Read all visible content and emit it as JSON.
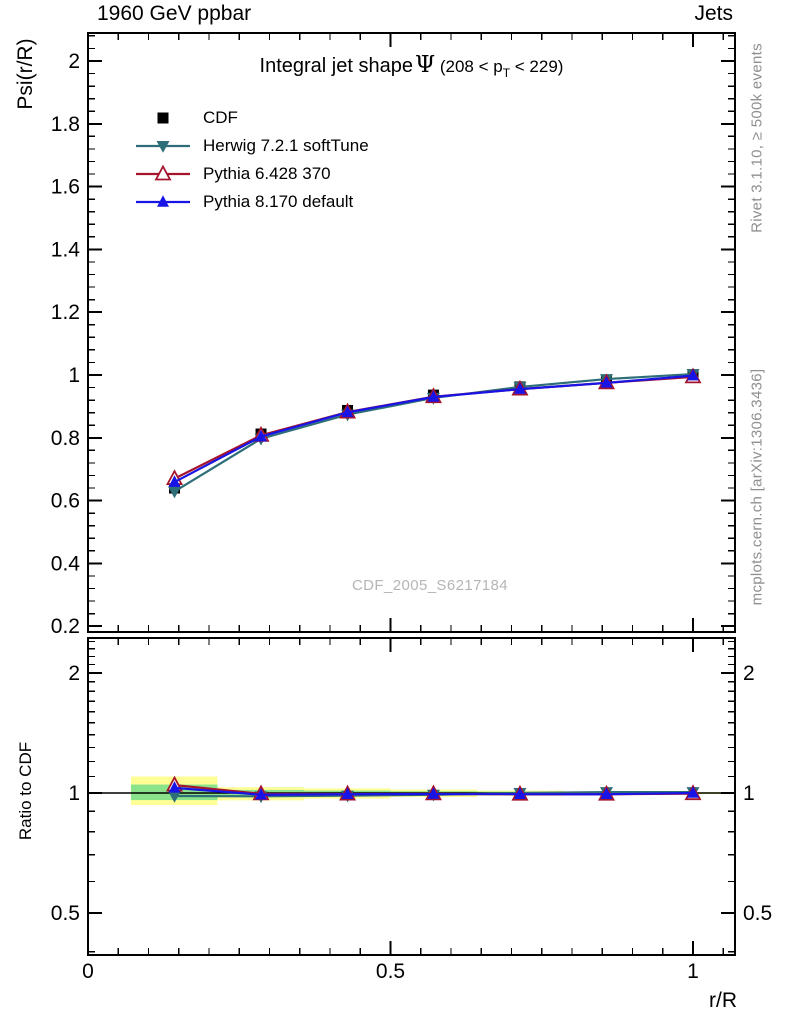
{
  "header": {
    "left": "1960 GeV ppbar",
    "right": "Jets"
  },
  "title": {
    "main": "Integral jet shape",
    "symbol": "Ψ",
    "cut_prefix": " (208 < p",
    "cut_sub": "T",
    "cut_suffix": " < 229)"
  },
  "axis_labels": {
    "y_main": "Psi(r/R)",
    "y_ratio": "Ratio to CDF",
    "x": "r/R"
  },
  "side_notes": {
    "top_right": "Rivet 3.1.10, ≥ 500k events",
    "bottom_right": "mcplots.cern.ch [arXiv:1306.3436]"
  },
  "watermark": "CDF_2005_S6217184",
  "colors": {
    "frame": "#000000",
    "cdf": "#000000",
    "herwig": "#2d6e78",
    "pythia6": "#a5142d",
    "pythia8": "#1914e6",
    "band_yellow": "#fdff96",
    "band_green": "#8ae28a",
    "gray_text": "#8f8f8f",
    "watermark_gray": "#b5b5b5"
  },
  "chart_data": {
    "type": "line",
    "title": "Integral jet shape Ψ (208 < p_T < 229)",
    "xlabel": "r/R",
    "ylabel": "Psi(r/R)",
    "ratio_ylabel": "Ratio to CDF",
    "x": [
      0.143,
      0.286,
      0.429,
      0.571,
      0.714,
      0.857,
      1.0
    ],
    "xlim": [
      0,
      1.069
    ],
    "ylim_main": [
      0.18,
      2.09
    ],
    "ylim_ratio": [
      0.39,
      2.45
    ],
    "ratio_log": true,
    "xticks": {
      "values": [
        0,
        0.5,
        1
      ],
      "labels": [
        "0",
        "0.5",
        "1"
      ]
    },
    "yticks_main": {
      "values": [
        0.2,
        0.4,
        0.6,
        0.8,
        1,
        1.2,
        1.4,
        1.6,
        1.8,
        2
      ],
      "labels": [
        "0.2",
        "0.4",
        "0.6",
        "0.8",
        "1",
        "1.2",
        "1.4",
        "1.6",
        "1.8",
        "2"
      ]
    },
    "yticks_ratio": {
      "values": [
        0.5,
        1,
        2
      ],
      "labels": [
        "0.5",
        "1",
        "2"
      ]
    },
    "series": [
      {
        "name": "CDF",
        "kind": "data",
        "marker": "square",
        "color": "#000000",
        "values": [
          0.64,
          0.812,
          0.887,
          0.936,
          0.962,
          0.982,
          0.998
        ],
        "errors": [
          0.012,
          0.008,
          0.006,
          0.005,
          0.004,
          0.004,
          0.004
        ]
      },
      {
        "name": "Herwig 7.2.1 softTune",
        "kind": "mc",
        "marker": "triangle-down",
        "color": "#2d6e78",
        "values": [
          0.629,
          0.797,
          0.874,
          0.927,
          0.962,
          0.987,
          1.003
        ],
        "ratio": [
          0.983,
          0.981,
          0.985,
          0.99,
          1.0,
          1.005,
          1.005
        ]
      },
      {
        "name": "Pythia 6.428 370",
        "kind": "mc",
        "marker": "triangle-open",
        "color": "#a5142d",
        "values": [
          0.67,
          0.808,
          0.882,
          0.931,
          0.955,
          0.975,
          0.994
        ],
        "ratio": [
          1.047,
          0.995,
          0.994,
          0.995,
          0.993,
          0.993,
          0.996
        ]
      },
      {
        "name": "Pythia 8.170 default",
        "kind": "mc",
        "marker": "triangle-up",
        "color": "#1914e6",
        "values": [
          0.659,
          0.804,
          0.881,
          0.93,
          0.955,
          0.975,
          0.998
        ],
        "ratio": [
          1.03,
          0.99,
          0.993,
          0.994,
          0.993,
          0.993,
          1.0
        ]
      }
    ],
    "ratio_reference": 1.0,
    "ratio_bands": [
      {
        "x0": 0.071,
        "x1": 0.214,
        "yellow": [
          0.933,
          1.1
        ],
        "green": [
          0.96,
          1.05
        ]
      },
      {
        "x0": 0.214,
        "x1": 0.357,
        "yellow": [
          0.958,
          1.034
        ],
        "green": [
          0.977,
          1.018
        ]
      },
      {
        "x0": 0.357,
        "x1": 0.5,
        "yellow": [
          0.968,
          1.027
        ],
        "green": [
          0.983,
          1.014
        ]
      },
      {
        "x0": 0.5,
        "x1": 0.643,
        "yellow": [
          0.977,
          1.02
        ],
        "green": [
          0.988,
          1.01
        ]
      },
      {
        "x0": 0.643,
        "x1": 0.786,
        "yellow": [
          0.984,
          1.014
        ],
        "green": [
          0.991,
          1.008
        ]
      },
      {
        "x0": 0.786,
        "x1": 0.929,
        "yellow": [
          0.989,
          1.009
        ],
        "green": [
          0.994,
          1.005
        ]
      },
      {
        "x0": 0.929,
        "x1": 1.069,
        "yellow": [
          0.994,
          1.005
        ],
        "green": [
          0.997,
          1.003
        ]
      }
    ]
  }
}
